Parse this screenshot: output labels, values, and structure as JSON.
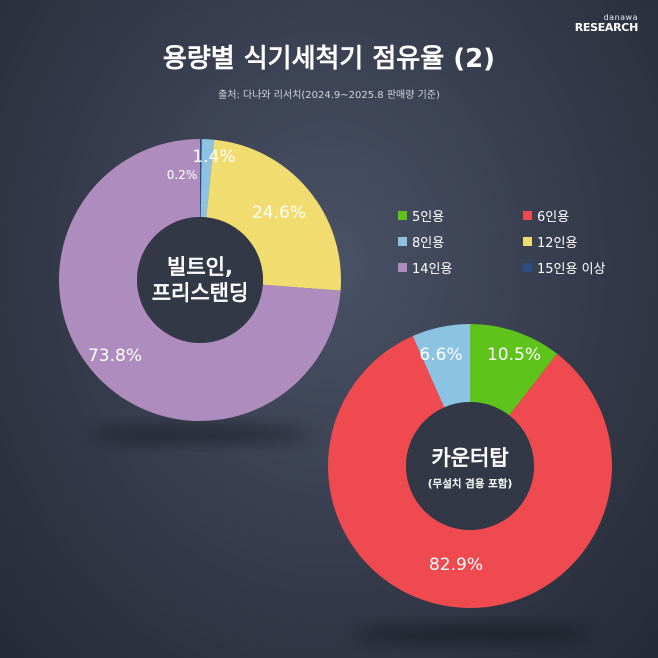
{
  "brand": {
    "line1": "danawa",
    "line2": "RESEARCH"
  },
  "title": "용량별 식기세척기 점유율 (2)",
  "source": "출처: 다나와 리서치(2024.9~2025.8 판매량 기준)",
  "legend": [
    {
      "label": "5인용",
      "color": "#5ec41c"
    },
    {
      "label": "6인용",
      "color": "#ee4a4f"
    },
    {
      "label": "8인용",
      "color": "#8cc3e3"
    },
    {
      "label": "12인용",
      "color": "#f1dc70"
    },
    {
      "label": "14인용",
      "color": "#ae8cbd"
    },
    {
      "label": "15인용 이상",
      "color": "#2d4d87"
    }
  ],
  "chart_data": [
    {
      "type": "pie",
      "center_label_lines": [
        "빌트인,",
        "프리스탠딩"
      ],
      "slices": [
        {
          "name": "15인용 이상",
          "value": 0.2,
          "label": "0.2%",
          "color": "#2d4d87"
        },
        {
          "name": "8인용",
          "value": 1.4,
          "label": "1.4%",
          "color": "#8cc3e3"
        },
        {
          "name": "12인용",
          "value": 24.6,
          "label": "24.6%",
          "color": "#f1dc70"
        },
        {
          "name": "14인용",
          "value": 73.8,
          "label": "73.8%",
          "color": "#ae8cbd"
        }
      ]
    },
    {
      "type": "pie",
      "center_label_lines": [
        "카운터탑"
      ],
      "center_sublabel": "(무설치 겸용 포함)",
      "slices": [
        {
          "name": "5인용",
          "value": 10.5,
          "label": "10.5%",
          "color": "#5ec41c"
        },
        {
          "name": "6인용",
          "value": 82.9,
          "label": "82.9%",
          "color": "#ee4a4f"
        },
        {
          "name": "8인용",
          "value": 6.6,
          "label": "6.6%",
          "color": "#8cc3e3"
        }
      ]
    }
  ]
}
